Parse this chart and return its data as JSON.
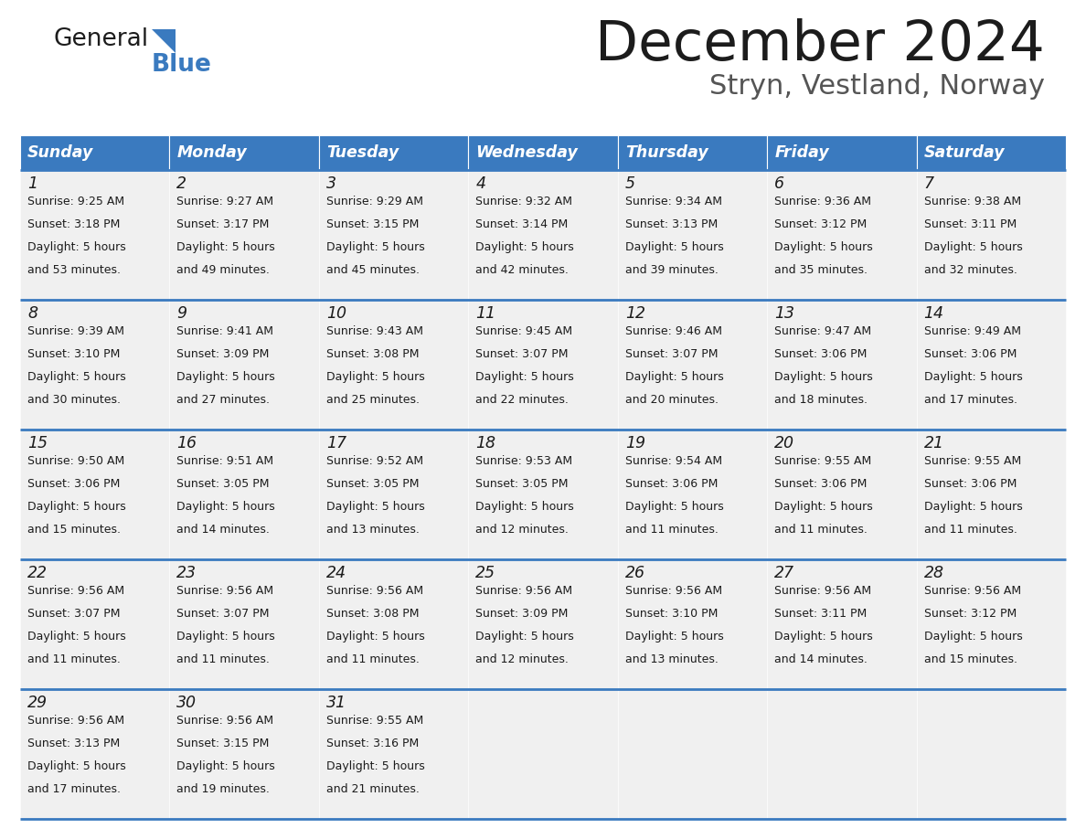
{
  "title": "December 2024",
  "subtitle": "Stryn, Vestland, Norway",
  "header_color": "#3a7abf",
  "header_text_color": "#ffffff",
  "cell_bg_color": "#f0f0f0",
  "border_color": "#3a7abf",
  "day_names": [
    "Sunday",
    "Monday",
    "Tuesday",
    "Wednesday",
    "Thursday",
    "Friday",
    "Saturday"
  ],
  "days": [
    {
      "day": 1,
      "col": 0,
      "row": 0,
      "sunrise": "9:25 AM",
      "sunset": "3:18 PM",
      "daylight_hours": 5,
      "daylight_minutes": 53
    },
    {
      "day": 2,
      "col": 1,
      "row": 0,
      "sunrise": "9:27 AM",
      "sunset": "3:17 PM",
      "daylight_hours": 5,
      "daylight_minutes": 49
    },
    {
      "day": 3,
      "col": 2,
      "row": 0,
      "sunrise": "9:29 AM",
      "sunset": "3:15 PM",
      "daylight_hours": 5,
      "daylight_minutes": 45
    },
    {
      "day": 4,
      "col": 3,
      "row": 0,
      "sunrise": "9:32 AM",
      "sunset": "3:14 PM",
      "daylight_hours": 5,
      "daylight_minutes": 42
    },
    {
      "day": 5,
      "col": 4,
      "row": 0,
      "sunrise": "9:34 AM",
      "sunset": "3:13 PM",
      "daylight_hours": 5,
      "daylight_minutes": 39
    },
    {
      "day": 6,
      "col": 5,
      "row": 0,
      "sunrise": "9:36 AM",
      "sunset": "3:12 PM",
      "daylight_hours": 5,
      "daylight_minutes": 35
    },
    {
      "day": 7,
      "col": 6,
      "row": 0,
      "sunrise": "9:38 AM",
      "sunset": "3:11 PM",
      "daylight_hours": 5,
      "daylight_minutes": 32
    },
    {
      "day": 8,
      "col": 0,
      "row": 1,
      "sunrise": "9:39 AM",
      "sunset": "3:10 PM",
      "daylight_hours": 5,
      "daylight_minutes": 30
    },
    {
      "day": 9,
      "col": 1,
      "row": 1,
      "sunrise": "9:41 AM",
      "sunset": "3:09 PM",
      "daylight_hours": 5,
      "daylight_minutes": 27
    },
    {
      "day": 10,
      "col": 2,
      "row": 1,
      "sunrise": "9:43 AM",
      "sunset": "3:08 PM",
      "daylight_hours": 5,
      "daylight_minutes": 25
    },
    {
      "day": 11,
      "col": 3,
      "row": 1,
      "sunrise": "9:45 AM",
      "sunset": "3:07 PM",
      "daylight_hours": 5,
      "daylight_minutes": 22
    },
    {
      "day": 12,
      "col": 4,
      "row": 1,
      "sunrise": "9:46 AM",
      "sunset": "3:07 PM",
      "daylight_hours": 5,
      "daylight_minutes": 20
    },
    {
      "day": 13,
      "col": 5,
      "row": 1,
      "sunrise": "9:47 AM",
      "sunset": "3:06 PM",
      "daylight_hours": 5,
      "daylight_minutes": 18
    },
    {
      "day": 14,
      "col": 6,
      "row": 1,
      "sunrise": "9:49 AM",
      "sunset": "3:06 PM",
      "daylight_hours": 5,
      "daylight_minutes": 17
    },
    {
      "day": 15,
      "col": 0,
      "row": 2,
      "sunrise": "9:50 AM",
      "sunset": "3:06 PM",
      "daylight_hours": 5,
      "daylight_minutes": 15
    },
    {
      "day": 16,
      "col": 1,
      "row": 2,
      "sunrise": "9:51 AM",
      "sunset": "3:05 PM",
      "daylight_hours": 5,
      "daylight_minutes": 14
    },
    {
      "day": 17,
      "col": 2,
      "row": 2,
      "sunrise": "9:52 AM",
      "sunset": "3:05 PM",
      "daylight_hours": 5,
      "daylight_minutes": 13
    },
    {
      "day": 18,
      "col": 3,
      "row": 2,
      "sunrise": "9:53 AM",
      "sunset": "3:05 PM",
      "daylight_hours": 5,
      "daylight_minutes": 12
    },
    {
      "day": 19,
      "col": 4,
      "row": 2,
      "sunrise": "9:54 AM",
      "sunset": "3:06 PM",
      "daylight_hours": 5,
      "daylight_minutes": 11
    },
    {
      "day": 20,
      "col": 5,
      "row": 2,
      "sunrise": "9:55 AM",
      "sunset": "3:06 PM",
      "daylight_hours": 5,
      "daylight_minutes": 11
    },
    {
      "day": 21,
      "col": 6,
      "row": 2,
      "sunrise": "9:55 AM",
      "sunset": "3:06 PM",
      "daylight_hours": 5,
      "daylight_minutes": 11
    },
    {
      "day": 22,
      "col": 0,
      "row": 3,
      "sunrise": "9:56 AM",
      "sunset": "3:07 PM",
      "daylight_hours": 5,
      "daylight_minutes": 11
    },
    {
      "day": 23,
      "col": 1,
      "row": 3,
      "sunrise": "9:56 AM",
      "sunset": "3:07 PM",
      "daylight_hours": 5,
      "daylight_minutes": 11
    },
    {
      "day": 24,
      "col": 2,
      "row": 3,
      "sunrise": "9:56 AM",
      "sunset": "3:08 PM",
      "daylight_hours": 5,
      "daylight_minutes": 11
    },
    {
      "day": 25,
      "col": 3,
      "row": 3,
      "sunrise": "9:56 AM",
      "sunset": "3:09 PM",
      "daylight_hours": 5,
      "daylight_minutes": 12
    },
    {
      "day": 26,
      "col": 4,
      "row": 3,
      "sunrise": "9:56 AM",
      "sunset": "3:10 PM",
      "daylight_hours": 5,
      "daylight_minutes": 13
    },
    {
      "day": 27,
      "col": 5,
      "row": 3,
      "sunrise": "9:56 AM",
      "sunset": "3:11 PM",
      "daylight_hours": 5,
      "daylight_minutes": 14
    },
    {
      "day": 28,
      "col": 6,
      "row": 3,
      "sunrise": "9:56 AM",
      "sunset": "3:12 PM",
      "daylight_hours": 5,
      "daylight_minutes": 15
    },
    {
      "day": 29,
      "col": 0,
      "row": 4,
      "sunrise": "9:56 AM",
      "sunset": "3:13 PM",
      "daylight_hours": 5,
      "daylight_minutes": 17
    },
    {
      "day": 30,
      "col": 1,
      "row": 4,
      "sunrise": "9:56 AM",
      "sunset": "3:15 PM",
      "daylight_hours": 5,
      "daylight_minutes": 19
    },
    {
      "day": 31,
      "col": 2,
      "row": 4,
      "sunrise": "9:55 AM",
      "sunset": "3:16 PM",
      "daylight_hours": 5,
      "daylight_minutes": 21
    }
  ],
  "num_rows": 5,
  "figsize": [
    11.88,
    9.18
  ],
  "dpi": 100
}
